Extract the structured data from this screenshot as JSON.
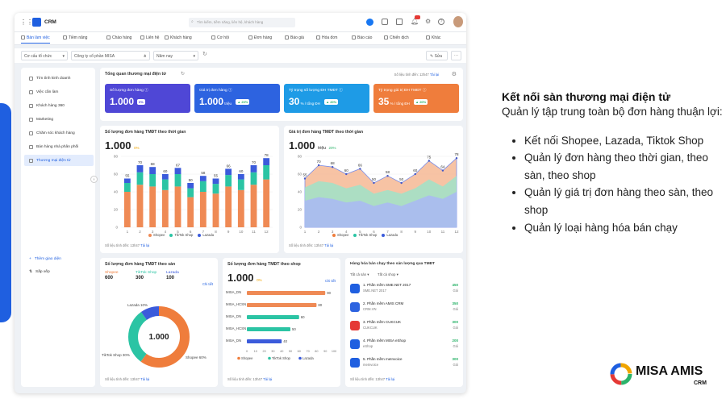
{
  "app": {
    "name": "CRM",
    "search_placeholder": "Tìm kiếm, tiềm năng, liên hệ, khách hàng"
  },
  "nav": [
    "Bàn làm việc",
    "Tiềm năng",
    "Chào hàng",
    "Liên hệ",
    "Khách hàng",
    "Cơ hội",
    "Đơn hàng",
    "Báo giá",
    "Hóa đơn",
    "Báo cáo",
    "Chiến dịch",
    "Khác"
  ],
  "filters": {
    "org": "Cơ cấu tổ chức",
    "company": "Công ty cổ phần MISA",
    "period": "Năm nay",
    "edit": "Sửa"
  },
  "sidebar": {
    "items": [
      "Tìm tình kinh doanh",
      "Việc cần làm",
      "Khách hàng 360",
      "Marketing",
      "Chăm sóc khách hàng",
      "Bán hàng nhà phân phối",
      "Thương mại điện tử"
    ],
    "add": "Thêm giao diện",
    "sort": "Sắp xếp"
  },
  "overview": {
    "title": "Tổng quan thương mại điện tử",
    "updated": "Số liệu tính đến: 13h47",
    "reload": "Tải lại",
    "kpis": [
      {
        "title": "Số lượng đơn hàng",
        "value": "1.000",
        "unit": "",
        "badge": "0%",
        "color": "#4f47d6"
      },
      {
        "title": "Giá trị đơn hàng",
        "value": "1.000",
        "unit": "triệu",
        "badge": "20%",
        "color": "#2d63e0"
      },
      {
        "title": "Tỷ trọng số lượng ĐH TMĐT",
        "value": "30",
        "unit": "% / tổng ĐH",
        "badge": "20%",
        "color": "#1e9be6"
      },
      {
        "title": "Tỷ trọng giá trị ĐH TMĐT",
        "value": "35",
        "unit": "% / tổng ĐH",
        "badge": "20%",
        "color": "#ef7d3c"
      }
    ]
  },
  "bar_card": {
    "title": "Số lượng đơn hàng TMĐT theo thời gian",
    "total": "1.000",
    "change": "0%",
    "updated": "Số liệu tính đến: 13h47",
    "reload": "Tải lại"
  },
  "area_card": {
    "title": "Giá trị đơn hàng TMĐT theo thời gian",
    "total": "1.000",
    "unit": "triệu",
    "change": "20%",
    "updated": "Số liệu tính đến: 13h47",
    "reload": "Tải lại"
  },
  "donut_card": {
    "title": "Số lượng đơn hàng TMĐT theo sàn",
    "center": "1.000",
    "detail": "Chi tiết",
    "updated": "Số liệu tính đến: 13h47",
    "reload": "Tải lại",
    "heads": [
      {
        "name": "Shopee",
        "value": "600",
        "color": "#ef7d3c"
      },
      {
        "name": "TikTok Shop",
        "value": "300",
        "color": "#2bc4a4"
      },
      {
        "name": "Lazada",
        "value": "100",
        "color": "#3b5bdb"
      }
    ],
    "labels": {
      "lazada": "Lazada 10%",
      "tiktok": "TikTok Shop 30%",
      "shopee": "Shopee 60%"
    }
  },
  "shop_card": {
    "title": "Số lượng đơn hàng TMĐT theo shop",
    "total": "1.000",
    "change": "0%",
    "detail": "Chi tiết",
    "updated": "Số liệu tính đến: 13h47",
    "reload": "Tải lại"
  },
  "top_card": {
    "title": "Hàng hóa bán chạy theo sản lượng qua TMĐT",
    "filter1": "Tất cả sàn",
    "filter2": "Tất cả shop",
    "updated": "Số liệu tính đến: 13h47",
    "reload": "Tải lại",
    "items": [
      {
        "name": "1. Phần mềm SME.NET 2017",
        "code": "SME.NET 2017",
        "qty": "450",
        "unit": "Gói"
      },
      {
        "name": "2. Phần mềm AMIS CRM",
        "code": "CRM.VN",
        "qty": "350",
        "unit": "Gói"
      },
      {
        "name": "3. Phần mềm CUKCUK",
        "code": "CUKCUK",
        "qty": "300",
        "unit": "Gói"
      },
      {
        "name": "4. Phần mềm MISA eShop",
        "code": "eShop",
        "qty": "200",
        "unit": "Gói"
      },
      {
        "name": "5. Phần mềm meInvoice",
        "code": "meInvoice",
        "qty": "300",
        "unit": "Gói"
      }
    ]
  },
  "chart_data": [
    {
      "type": "bar",
      "title": "Số lượng đơn hàng TMĐT theo thời gian",
      "categories": [
        "1",
        "2",
        "3",
        "4",
        "5",
        "6",
        "7",
        "8",
        "9",
        "10",
        "11",
        "12"
      ],
      "totals": [
        55,
        70,
        68,
        60,
        67,
        50,
        58,
        55,
        66,
        60,
        70,
        78
      ],
      "series": [
        {
          "name": "Shopee",
          "color": "#ef8a55",
          "values": [
            40,
            48,
            46,
            42,
            46,
            34,
            40,
            38,
            46,
            42,
            48,
            54
          ]
        },
        {
          "name": "TikTok Shop",
          "color": "#2bc4a4",
          "values": [
            10,
            14,
            14,
            12,
            14,
            10,
            12,
            11,
            13,
            12,
            14,
            16
          ]
        },
        {
          "name": "Lazada",
          "color": "#3b5bdb",
          "values": [
            5,
            8,
            8,
            6,
            7,
            6,
            6,
            6,
            7,
            6,
            8,
            8
          ]
        }
      ],
      "yticks": [
        "0",
        "20",
        "40",
        "60",
        "80"
      ],
      "ylim": [
        0,
        80
      ]
    },
    {
      "type": "area",
      "title": "Giá trị đơn hàng TMĐT theo thời gian",
      "categories": [
        "1",
        "2",
        "3",
        "4",
        "5",
        "6",
        "7",
        "8",
        "9",
        "10",
        "11",
        "12"
      ],
      "labels": [
        55,
        70,
        68,
        60,
        66,
        50,
        58,
        50,
        60,
        75,
        64,
        78
      ],
      "series": [
        {
          "name": "Shopee",
          "color": "#f6b894",
          "values": [
            55,
            70,
            68,
            60,
            66,
            50,
            58,
            50,
            60,
            75,
            64,
            78
          ]
        },
        {
          "name": "TikTok Shop",
          "color": "#9fe3c9",
          "values": [
            45,
            52,
            50,
            44,
            48,
            38,
            42,
            38,
            44,
            54,
            46,
            58
          ]
        },
        {
          "name": "Lazada",
          "color": "#a9b8f5",
          "values": [
            30,
            34,
            32,
            28,
            30,
            24,
            28,
            24,
            30,
            36,
            32,
            40
          ]
        }
      ],
      "yticks": [
        "0",
        "20",
        "40",
        "60",
        "80"
      ],
      "ylim": [
        0,
        80
      ]
    },
    {
      "type": "pie",
      "title": "Số lượng đơn hàng TMĐT theo sàn",
      "slices": [
        {
          "name": "Shopee",
          "value": 60,
          "color": "#ef7d3c"
        },
        {
          "name": "TikTok Shop",
          "value": 30,
          "color": "#2bc4a4"
        },
        {
          "name": "Lazada",
          "value": 10,
          "color": "#3b5bdb"
        }
      ]
    },
    {
      "type": "bar",
      "orientation": "horizontal",
      "title": "Số lượng đơn hàng TMĐT theo shop",
      "categories": [
        "MISA_DN",
        "MISA_HCSN",
        "MISA_DN",
        "MISA_HCSN",
        "MISA_DN"
      ],
      "values": [
        90,
        80,
        60,
        50,
        40
      ],
      "colors": [
        "#ef8a55",
        "#ef8a55",
        "#2bc4a4",
        "#2bc4a4",
        "#3b5bdb"
      ],
      "xticks": [
        "0",
        "10",
        "20",
        "30",
        "40",
        "50",
        "60",
        "70",
        "80",
        "90",
        "100"
      ],
      "xlim": [
        0,
        100
      ]
    }
  ],
  "text_panel": {
    "heading": "Kết nối sàn thương mại điện tử",
    "desc": "Quản lý tập trung toàn bộ đơn hàng thuận lợi:",
    "bullets": [
      "Kết nối Shopee, Lazada, Tiktok Shop",
      "Quản lý đơn hàng theo thời gian, theo sàn, theo shop",
      "Quản lý giá trị đơn hàng theo sàn, theo shop",
      "Quản lý loại hàng hóa bán chạy"
    ]
  },
  "logo": {
    "brand": "MISA AMIS",
    "product": "CRM"
  }
}
